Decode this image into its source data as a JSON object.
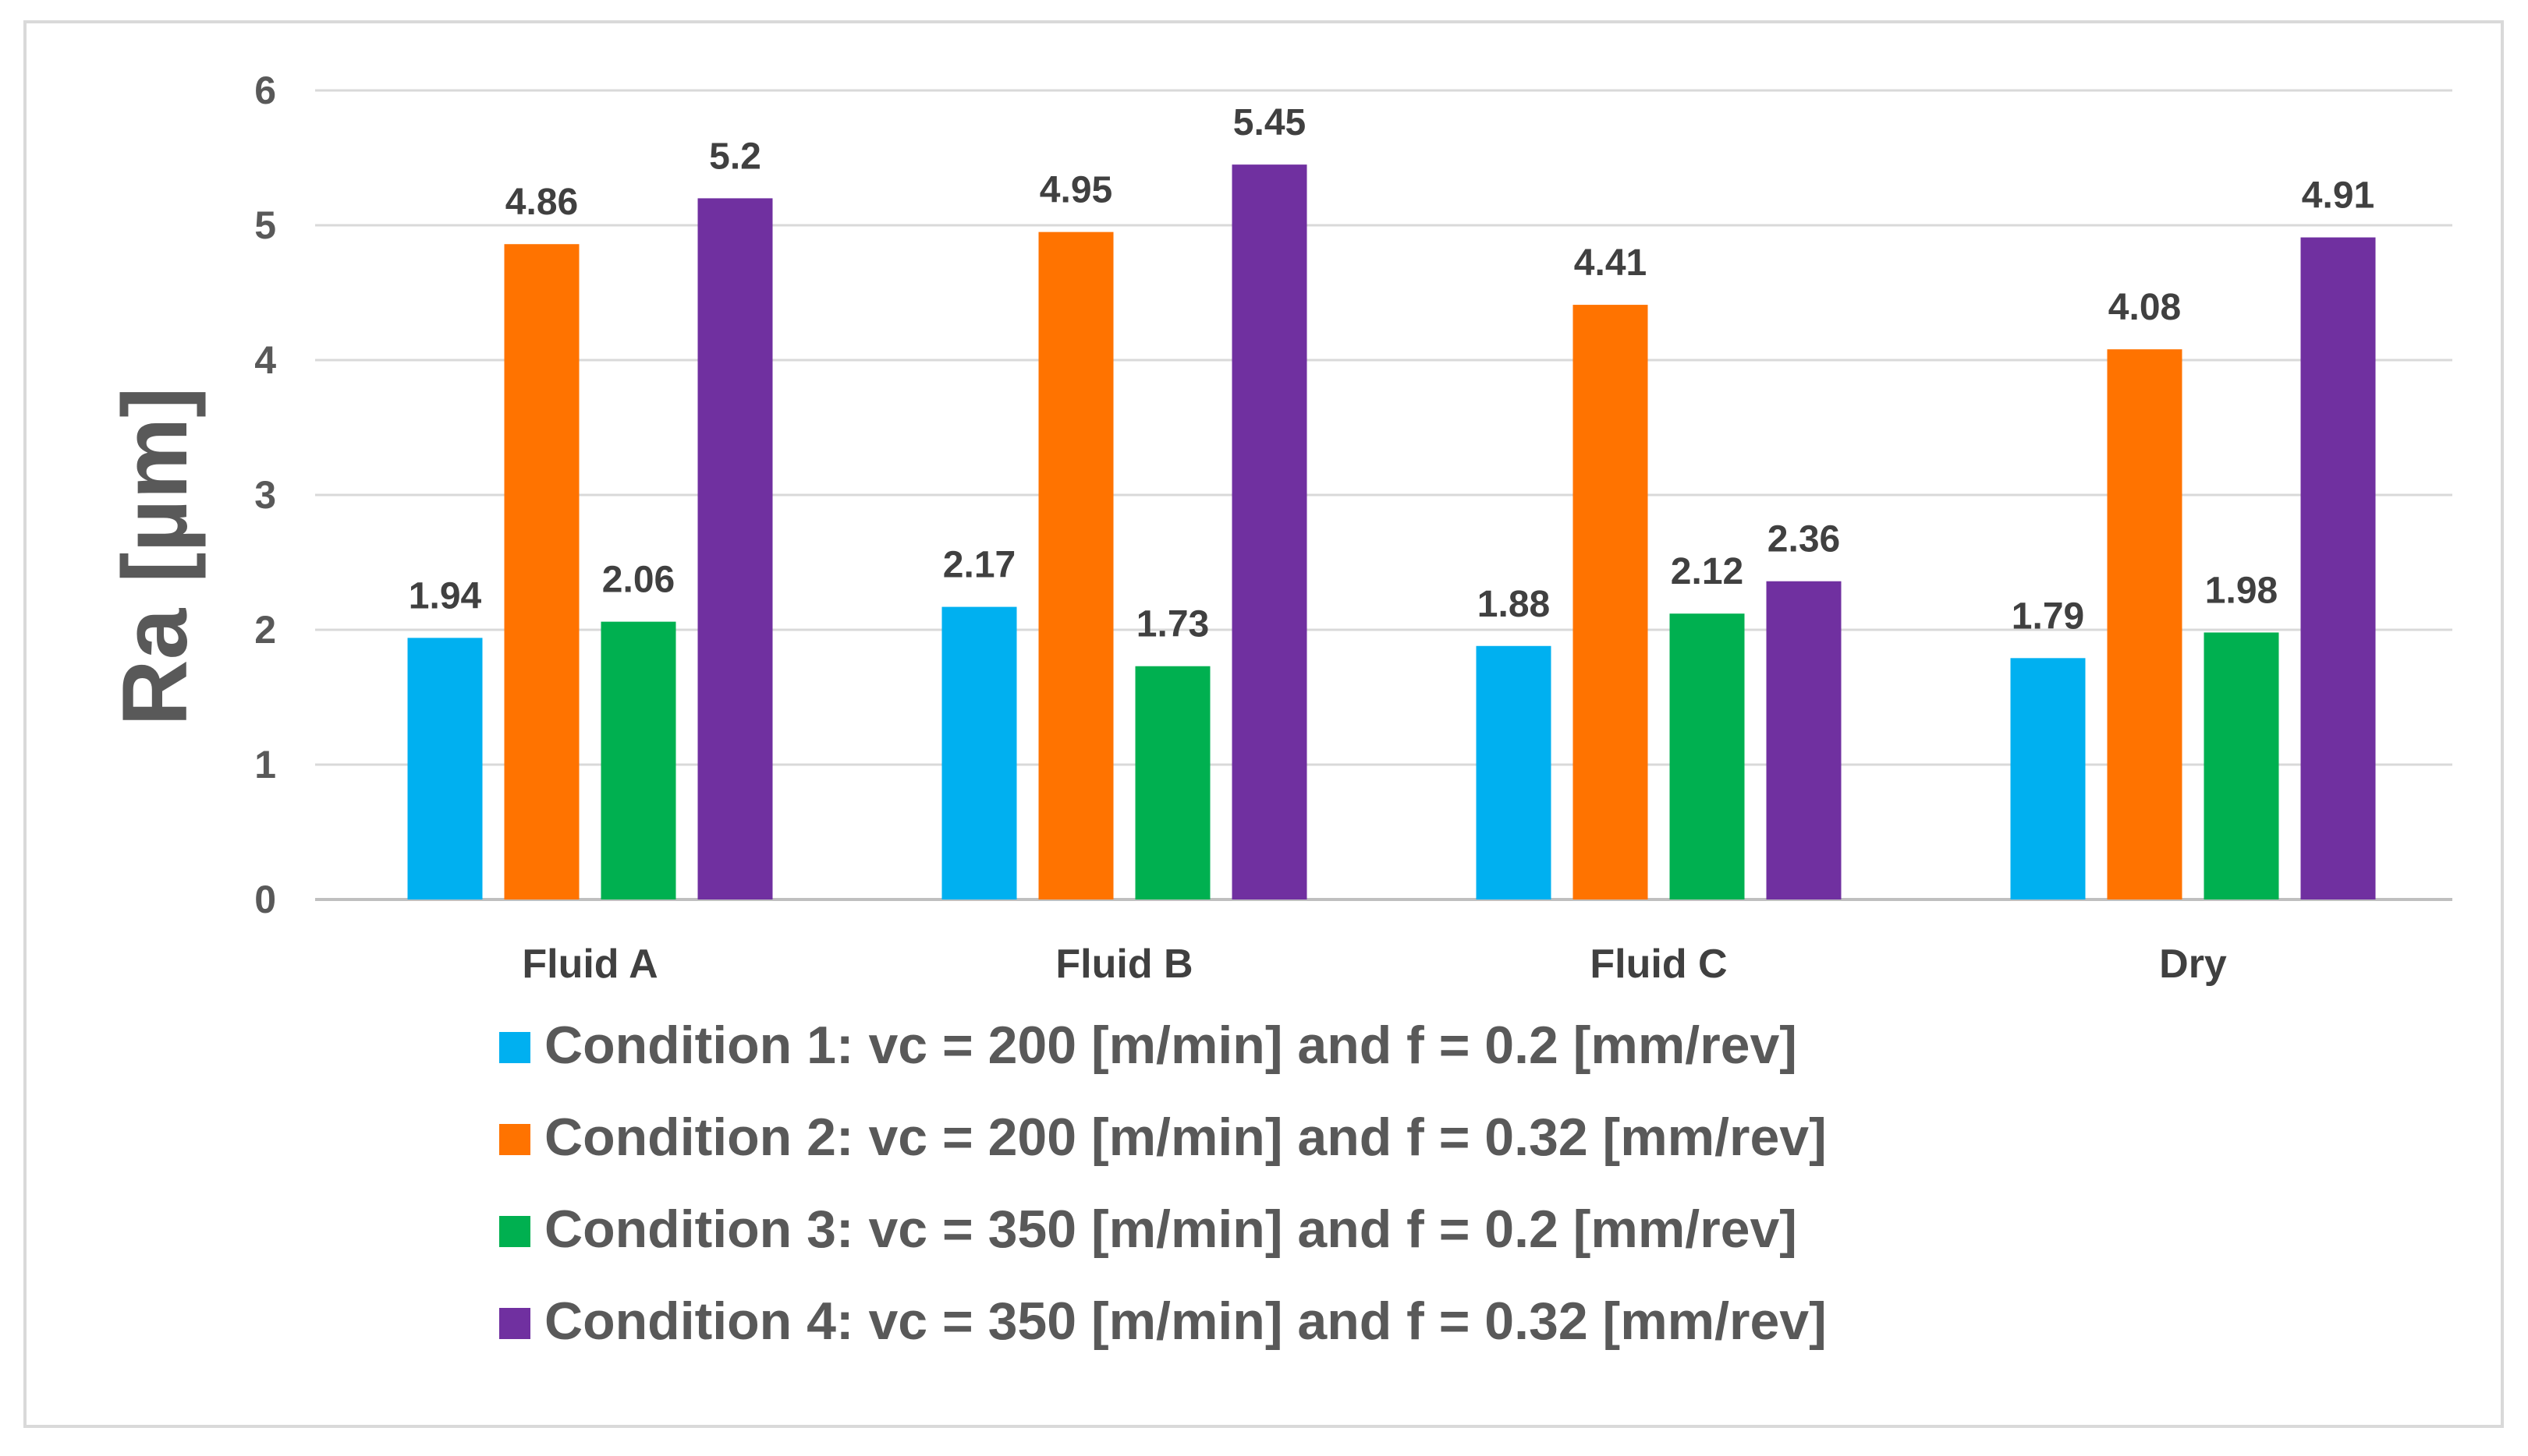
{
  "chart_data": {
    "type": "bar",
    "title": "",
    "xlabel": "",
    "ylabel": "Ra [µm]",
    "ylim": [
      0,
      6
    ],
    "yticks": [
      "0",
      "1",
      "2",
      "3",
      "4",
      "5",
      "6"
    ],
    "grid": true,
    "legend_position": "bottom",
    "categories": [
      "Fluid A",
      "Fluid B",
      "Fluid C",
      "Dry"
    ],
    "series": [
      {
        "name": "Condition 1: vc = 200 [m/min] and f = 0.2 [mm/rev]",
        "color": "#00b0f0",
        "values": [
          1.94,
          2.17,
          1.88,
          1.79
        ],
        "labels": [
          "1.94",
          "2.17",
          "1.88",
          "1.79"
        ]
      },
      {
        "name": "Condition 2: vc = 200 [m/min] and f = 0.32 [mm/rev]",
        "color": "#ff7300",
        "values": [
          4.86,
          4.95,
          4.41,
          4.08
        ],
        "labels": [
          "4.86",
          "4.95",
          "4.41",
          "4.08"
        ]
      },
      {
        "name": "Condition 3: vc = 350 [m/min] and f = 0.2 [mm/rev]",
        "color": "#00b050",
        "values": [
          2.06,
          1.73,
          2.12,
          1.98
        ],
        "labels": [
          "2.06",
          "1.73",
          "2.12",
          "1.98"
        ]
      },
      {
        "name": "Condition 4: vc = 350 [m/min] and f = 0.32 [mm/rev]",
        "color": "#7030a0",
        "values": [
          5.2,
          5.45,
          2.36,
          4.91
        ],
        "labels": [
          "5.2",
          "5.45",
          "2.36",
          "4.91"
        ]
      }
    ]
  }
}
